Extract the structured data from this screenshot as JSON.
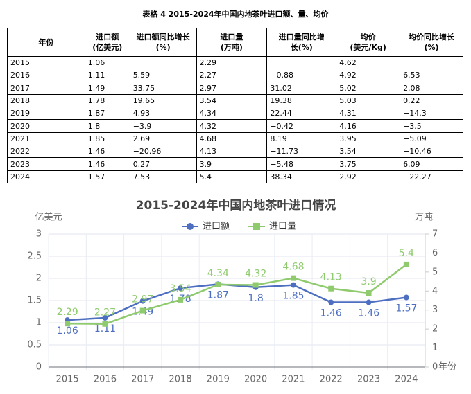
{
  "table": {
    "title": "表格 4 2015-2024年中国内地茶叶进口额、量、均价",
    "header": [
      [
        "年份"
      ],
      [
        "进口额",
        "(亿美元)"
      ],
      [
        "进口额同比增长",
        "(%)"
      ],
      [
        "进口量",
        "(万吨)"
      ],
      [
        "进口量同比增",
        "长(%)"
      ],
      [
        "均价",
        "(美元/Kg)"
      ],
      [
        "均价同比增长",
        "(%)"
      ]
    ],
    "rows": [
      [
        "2015",
        "1.06",
        null,
        "2.29",
        null,
        "4.62",
        null
      ],
      [
        "2016",
        "1.11",
        "5.59",
        "2.27",
        "−0.88",
        "4.92",
        "6.53"
      ],
      [
        "2017",
        "1.49",
        "33.75",
        "2.97",
        "31.02",
        "5.02",
        "2.08"
      ],
      [
        "2018",
        "1.78",
        "19.65",
        "3.54",
        "19.38",
        "5.03",
        "0.22"
      ],
      [
        "2019",
        "1.87",
        "4.93",
        "4.34",
        "22.44",
        "4.31",
        "−14.3"
      ],
      [
        "2020",
        "1.8",
        "−3.9",
        "4.32",
        "−0.42",
        "4.16",
        "−3.5"
      ],
      [
        "2021",
        "1.85",
        "2.69",
        "4.68",
        "8.19",
        "3.95",
        "−5.09"
      ],
      [
        "2022",
        "1.46",
        "−20.96",
        "4.13",
        "−11.73",
        "3.54",
        "−10.46"
      ],
      [
        "2023",
        "1.46",
        "0.27",
        "3.9",
        "−5.48",
        "3.75",
        "6.09"
      ],
      [
        "2024",
        "1.57",
        "7.53",
        "5.4",
        "38.34",
        "2.92",
        "−22.27"
      ]
    ]
  },
  "chart_data": {
    "type": "line",
    "title": "2015-2024年中国内地茶叶进口情况",
    "y_label": "亿美元",
    "y2_label": "万吨",
    "x_label": "年份",
    "categories": [
      "2015",
      "2016",
      "2017",
      "2018",
      "2019",
      "2020",
      "2021",
      "2022",
      "2023",
      "2024"
    ],
    "series": [
      {
        "name": "进口额",
        "color": "#4e6fc1",
        "values": [
          1.06,
          1.11,
          1.49,
          1.78,
          1.87,
          1.8,
          1.85,
          1.46,
          1.46,
          1.57
        ]
      },
      {
        "name": "进口量",
        "color": "#8fcb6e",
        "axis": "y2",
        "values": [
          2.29,
          2.27,
          2.97,
          3.54,
          4.34,
          4.32,
          4.68,
          4.13,
          3.9,
          5.4
        ]
      }
    ],
    "ylim": [
      0,
      3
    ],
    "yticks": [
      0,
      0.5,
      1,
      1.5,
      2,
      2.5,
      3
    ],
    "y2lim": [
      0,
      7
    ],
    "y2ticks": [
      0,
      1,
      2,
      3,
      4,
      5,
      6,
      7
    ],
    "grid": true,
    "legend": "top"
  }
}
